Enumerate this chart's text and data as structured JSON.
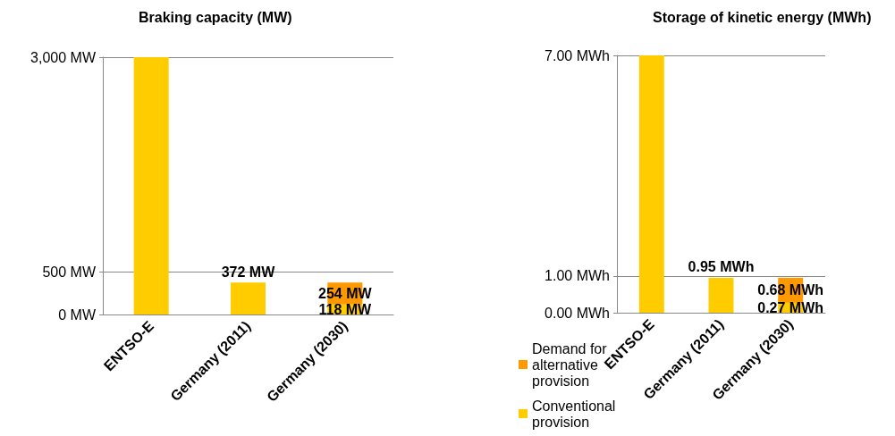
{
  "chart_data": [
    {
      "type": "bar",
      "title": "Braking capacity (MW)",
      "categories": [
        "ENTSO-E",
        "Germany (2011)",
        "Germany (2030)"
      ],
      "stacked": true,
      "series": [
        {
          "name": "Conventional provision",
          "color": "#ffcc00",
          "values": [
            3000,
            372,
            118
          ],
          "value_labels": [
            null,
            "372 MW",
            "118 MW"
          ]
        },
        {
          "name": "Demand for alternative provision",
          "color": "#ff9900",
          "values": [
            null,
            null,
            254
          ],
          "value_labels": [
            null,
            null,
            "254 MW"
          ]
        }
      ],
      "ylim": [
        0,
        3000
      ],
      "yticks": [
        {
          "value": 0,
          "label": "0 MW"
        },
        {
          "value": 500,
          "label": "500 MW"
        },
        {
          "value": 3000,
          "label": "3,000 MW"
        }
      ],
      "grid": "y",
      "legend": "bottom right"
    },
    {
      "type": "bar",
      "title": "Storage of kinetic energy (MWh)",
      "categories": [
        "ENTSO-E",
        "Germany (2011)",
        "Germany (2030)"
      ],
      "stacked": true,
      "series": [
        {
          "color": "#ffcc00",
          "values": [
            7.0,
            0.95,
            0.27
          ],
          "value_labels": [
            null,
            "0.95 MWh",
            "0.27 MWh"
          ]
        },
        {
          "color": "#ff9900",
          "values": [
            null,
            null,
            0.68
          ],
          "value_labels": [
            null,
            null,
            "0.68 MWh"
          ]
        }
      ],
      "ylim": [
        0,
        7
      ],
      "yticks": [
        {
          "value": 0,
          "label": "0.00 MWh"
        },
        {
          "value": 1,
          "label": "1.00 MWh"
        },
        {
          "value": 7,
          "label": "7.00 MWh"
        }
      ],
      "grid": "y"
    }
  ]
}
